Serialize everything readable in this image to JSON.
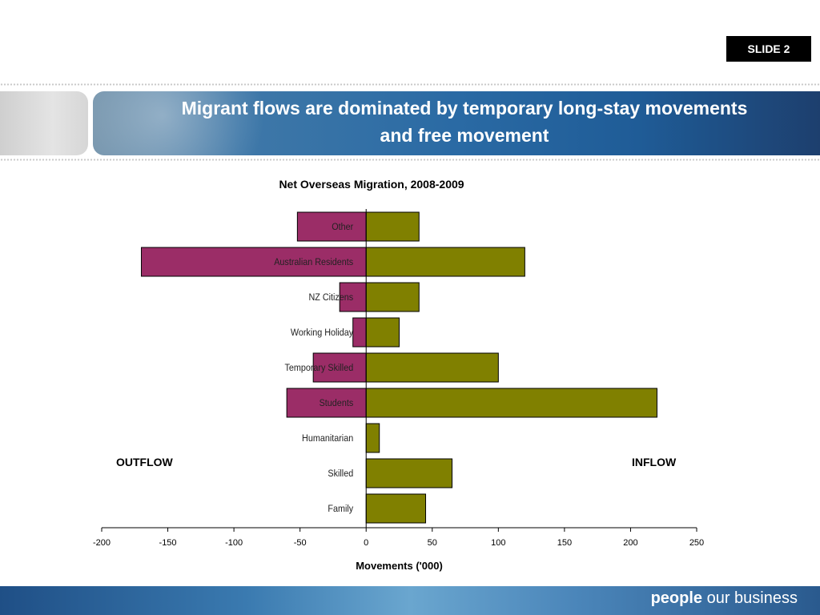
{
  "slide": {
    "badge": "SLIDE 2"
  },
  "header": {
    "title_line1": "Migrant flows are dominated by temporary long-stay movements",
    "title_line2": "and free movement"
  },
  "labels": {
    "outflow": "OUTFLOW",
    "inflow": "INFLOW"
  },
  "footer": {
    "brand_bold": "people",
    "brand_rest": " our business"
  },
  "colors": {
    "outflow": "#9b2d67",
    "inflow": "#808000"
  },
  "chart_data": {
    "type": "bar",
    "orientation": "horizontal",
    "title": "Net Overseas Migration, 2008-2009",
    "xlabel": "Movements ('000)",
    "ylabel": "",
    "xlim": [
      -200,
      250
    ],
    "xticks": [
      -200,
      -150,
      -100,
      -50,
      0,
      50,
      100,
      150,
      200,
      250
    ],
    "categories": [
      "Other",
      "Australian Residents",
      "NZ Citizens",
      "Working Holiday",
      "Temporary Skilled",
      "Students",
      "Humanitarian",
      "Skilled",
      "Family"
    ],
    "series": [
      {
        "values": [
          -52,
          -170,
          -20,
          -10,
          -40,
          -60,
          0,
          0,
          0
        ]
      },
      {
        "values": [
          40,
          120,
          40,
          25,
          100,
          220,
          10,
          65,
          45
        ]
      }
    ]
  }
}
